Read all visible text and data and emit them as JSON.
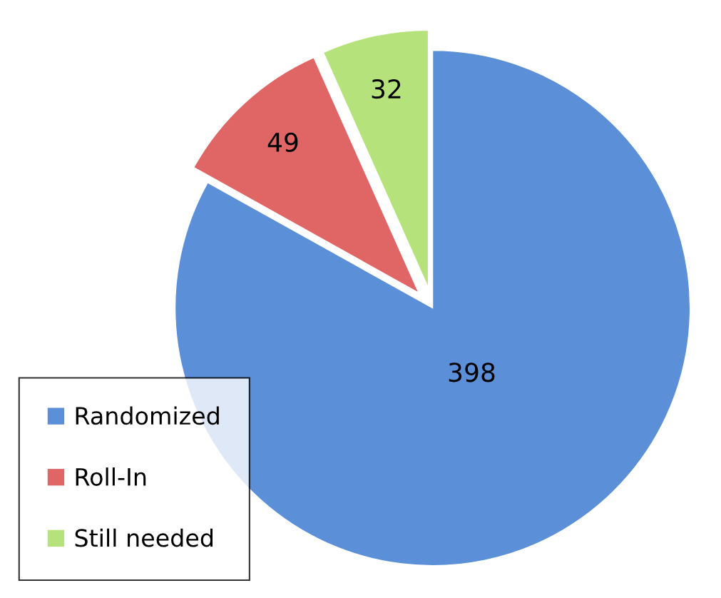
{
  "chart_data": {
    "type": "pie",
    "categories": [
      "Randomized",
      "Roll-In",
      "Still needed"
    ],
    "values": [
      398,
      49,
      32
    ],
    "colors": [
      "#5b8fd8",
      "#e06666",
      "#b5e27a"
    ],
    "data_labels": true,
    "legend": "bottom left"
  }
}
